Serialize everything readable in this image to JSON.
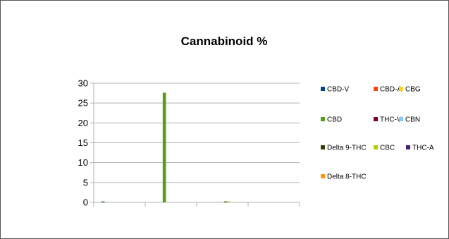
{
  "chart_data": {
    "type": "bar",
    "title": "Cannabinoid %",
    "xlabel": "",
    "ylabel": "",
    "ylim": [
      0,
      30
    ],
    "yticks": [
      0,
      5,
      10,
      15,
      20,
      25,
      30
    ],
    "grid": true,
    "legend_position": "right",
    "categories": [
      "",
      "",
      "",
      ""
    ],
    "series": [
      {
        "name": "CBD-V",
        "color": "#004586",
        "values": [
          0.2,
          0,
          0,
          0
        ]
      },
      {
        "name": "CBD-A",
        "color": "#ff420e",
        "values": [
          0,
          0,
          0,
          0
        ]
      },
      {
        "name": "CBG",
        "color": "#ffd320",
        "values": [
          0,
          0,
          0,
          0
        ]
      },
      {
        "name": "CBD",
        "color": "#579d1c",
        "values": [
          0,
          27.6,
          0,
          0
        ]
      },
      {
        "name": "THC-V",
        "color": "#7e0021",
        "values": [
          0,
          0,
          0,
          0
        ]
      },
      {
        "name": "CBN",
        "color": "#83caff",
        "values": [
          0,
          0,
          0,
          0
        ]
      },
      {
        "name": "Delta 9-THC",
        "color": "#314004",
        "values": [
          0,
          0,
          0.15,
          0
        ]
      },
      {
        "name": "CBC",
        "color": "#aecf00",
        "values": [
          0,
          0,
          0.15,
          0
        ]
      },
      {
        "name": "THC-A",
        "color": "#4b1f6f",
        "values": [
          0,
          0,
          0,
          0
        ]
      },
      {
        "name": "Delta 8-THC",
        "color": "#ff950e",
        "values": [
          0,
          0,
          0,
          0
        ]
      }
    ],
    "legend_rows": [
      [
        "CBD-V",
        "CBD-A",
        "CBG"
      ],
      [
        "CBD",
        "THC-V",
        "CBN"
      ],
      [
        "Delta 9-THC",
        "CBC",
        "THC-A"
      ],
      [
        "Delta 8-THC"
      ]
    ]
  }
}
